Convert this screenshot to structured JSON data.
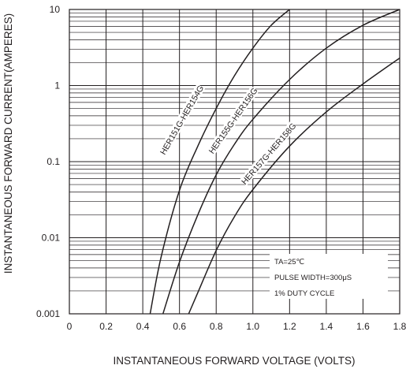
{
  "chart_data": {
    "type": "line",
    "xlabel": "INSTANTANEOUS FORWARD VOLTAGE (VOLTS)",
    "ylabel": "INSTANTANEOUS FORWARD CURRENT(AMPERES)",
    "xlim": [
      0,
      1.8
    ],
    "ylim": [
      0.001,
      10
    ],
    "yscale": "log",
    "grid": true,
    "x_ticks": [
      "0",
      "0.2",
      "0.4",
      "0.6",
      "0.8",
      "1.0",
      "1.2",
      "1.4",
      "1.6",
      "1.8"
    ],
    "y_ticks": [
      "0.001",
      "0.01",
      "0.1",
      "1",
      "10"
    ],
    "series": [
      {
        "name": "HER151G-HER154G",
        "x": [
          0.44,
          0.5,
          0.6,
          0.7,
          0.8,
          0.9,
          1.0,
          1.1,
          1.2
        ],
        "y": [
          0.001,
          0.0056,
          0.042,
          0.16,
          0.5,
          1.35,
          3.1,
          6.2,
          10
        ]
      },
      {
        "name": "HER155G-HER156G",
        "x": [
          0.51,
          0.6,
          0.7,
          0.8,
          0.9,
          1.0,
          1.2,
          1.4,
          1.6,
          1.8
        ],
        "y": [
          0.001,
          0.0048,
          0.02,
          0.067,
          0.17,
          0.36,
          1.2,
          3.1,
          6.2,
          10
        ]
      },
      {
        "name": "HER157G-HER158G",
        "x": [
          0.65,
          0.7,
          0.8,
          0.9,
          1.0,
          1.2,
          1.4,
          1.6,
          1.8
        ],
        "y": [
          0.001,
          0.0019,
          0.0068,
          0.019,
          0.043,
          0.16,
          0.45,
          1.05,
          2.3
        ]
      }
    ],
    "annotations": [
      "TA=25℃",
      "PULSE WIDTH=300μS",
      "1% DUTY CYCLE"
    ]
  }
}
